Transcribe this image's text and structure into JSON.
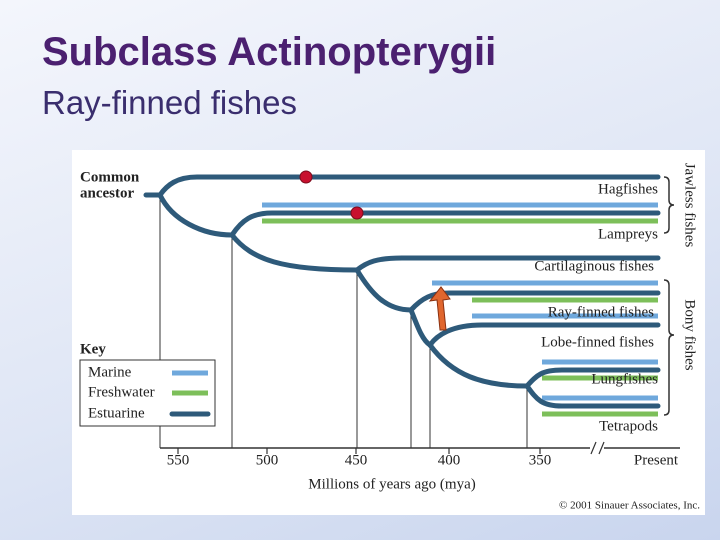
{
  "title": "Subclass Actinopterygii",
  "subtitle": "Ray-finned fishes",
  "figure": {
    "ancestor": [
      "Common",
      "ancestor"
    ],
    "taxa": [
      "Hagfishes",
      "Lampreys",
      "Cartilaginous fishes",
      "Ray-finned fishes",
      "Lobe-finned fishes",
      "Lungfishes",
      "Tetrapods"
    ],
    "groups": [
      "Jawless fishes",
      "Bony fishes"
    ],
    "key": {
      "title": "Key",
      "items": [
        "Marine",
        "Freshwater",
        "Estuarine"
      ]
    },
    "axis": {
      "ticks": [
        "550",
        "500",
        "450",
        "400",
        "350",
        "Present"
      ],
      "label": "Millions of years ago (mya)"
    },
    "credit": "© 2001 Sinauer Associates, Inc."
  }
}
